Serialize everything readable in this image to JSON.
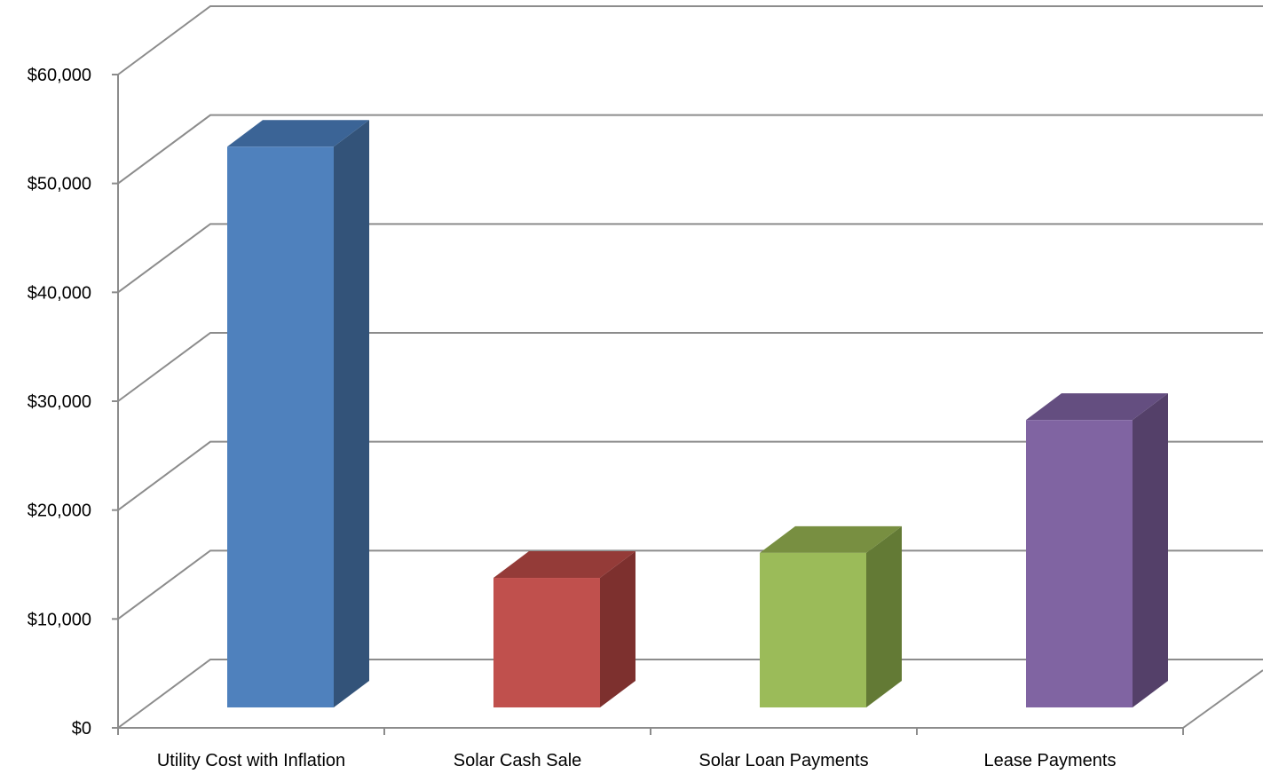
{
  "chart_data": {
    "type": "bar",
    "style": "3d-column",
    "categories": [
      "Utility Cost with Inflation",
      "Solar Cash Sale",
      "Solar Loan Payments",
      "Lease Payments"
    ],
    "values": [
      51500,
      11900,
      14200,
      26400
    ],
    "colors": [
      {
        "front": "#4F81BD",
        "side": "#335379",
        "top": "#3B6496"
      },
      {
        "front": "#C0504D",
        "side": "#7D302E",
        "top": "#943B38"
      },
      {
        "front": "#9BBB59",
        "side": "#637A35",
        "top": "#788F41"
      },
      {
        "front": "#8064A2",
        "side": "#544069",
        "top": "#644E80"
      }
    ],
    "ylim": [
      0,
      60000
    ],
    "yticks": [
      0,
      10000,
      20000,
      30000,
      40000,
      50000,
      60000
    ],
    "ytick_labels": [
      "$0",
      "$10,000",
      "$20,000",
      "$30,000",
      "$40,000",
      "$50,000",
      "$60,000"
    ],
    "grid": true,
    "gridline_color": "#8C8C8C"
  }
}
